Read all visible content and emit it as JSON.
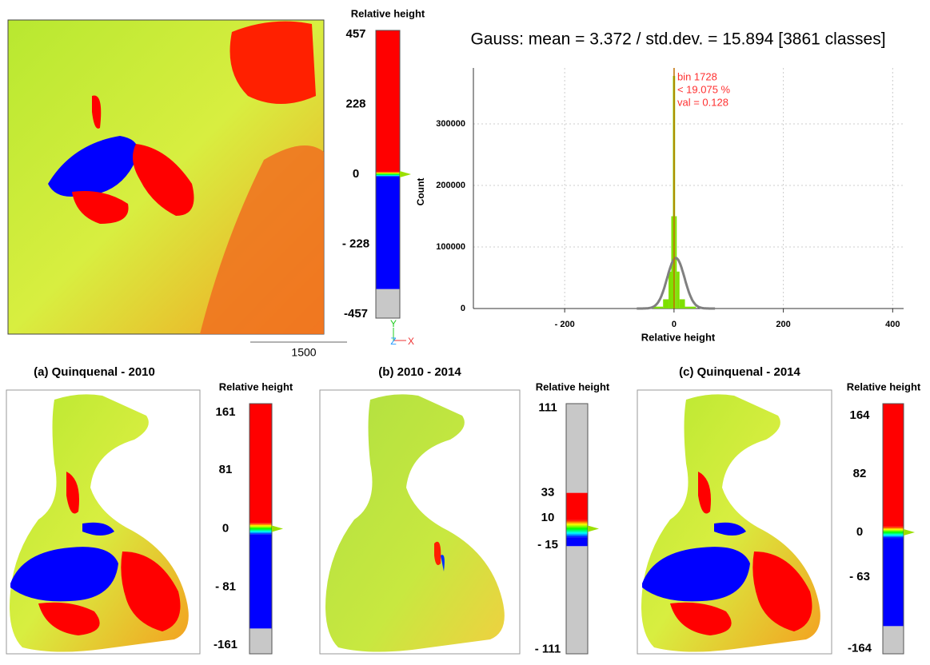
{
  "chart_data": {
    "type": "histogram",
    "title": "Gauss: mean = 3.372 / std.dev. = 15.894 [3861 classes]",
    "x_label": "Relative height",
    "y_label": "Count",
    "bins": [
      -40,
      -20,
      -10,
      -5,
      -2,
      2,
      5,
      10,
      20,
      40
    ],
    "counts": [
      3000,
      15000,
      60000,
      150000,
      378000,
      150000,
      60000,
      15000,
      3000
    ],
    "color": "#7ee000",
    "gauss": {
      "mean": 3.372,
      "std": 15.894,
      "peak": 82000,
      "color": "#808080"
    },
    "marker": {
      "value": 0.128,
      "color": "#c07000",
      "labels": [
        "bin 1728",
        "< 19.075 %",
        "val = 0.128"
      ],
      "label_color": "#ff3030"
    },
    "xlim": [
      -367,
      420
    ],
    "ylim": [
      0,
      391000
    ],
    "xticks": [
      {
        "value": -200,
        "label": "- 200"
      },
      0,
      200,
      400
    ],
    "yticks": [
      0,
      100000,
      200000,
      300000
    ],
    "grid": true
  },
  "top_map": {
    "scale_bar": "1500",
    "axes": [
      "Y",
      "Z",
      "X"
    ]
  },
  "panels": [
    {
      "title": "(a) Quinquenal - 2010"
    },
    {
      "title": "(b) 2010 - 2014"
    },
    {
      "title": "(c) Quinquenal - 2014"
    }
  ],
  "colorbars": [
    {
      "title": "Relative height",
      "lim": [
        -470,
        470
      ],
      "ticks": [
        457,
        228,
        0,
        {
          "value": -228,
          "label": "- 228"
        },
        -457
      ],
      "bands": [
        {
          "from": -470,
          "to": -375,
          "color": "#c8c8c8"
        },
        {
          "from": -375,
          "to": -8,
          "color": "#0000ff"
        },
        {
          "from": -8,
          "to": 8,
          "colors": [
            "#0000ff",
            "#00ffff",
            "#00ff00",
            "#ffff00",
            "#ff0000"
          ]
        },
        {
          "from": 8,
          "to": 470,
          "color": "#ff0000"
        }
      ]
    },
    {
      "title": "Relative height",
      "lim": [
        -173,
        173
      ],
      "ticks": [
        161,
        81,
        0,
        {
          "value": -81,
          "label": "- 81"
        },
        -161
      ],
      "bands": [
        {
          "from": -173,
          "to": -138,
          "color": "#c8c8c8"
        },
        {
          "from": -138,
          "to": -8,
          "color": "#0000ff"
        },
        {
          "from": -8,
          "to": 8,
          "colors": [
            "#0000ff",
            "#00ffff",
            "#00ff00",
            "#ffff00",
            "#ff0000"
          ]
        },
        {
          "from": 8,
          "to": 173,
          "color": "#ff0000"
        }
      ]
    },
    {
      "title": "Relative height",
      "lim": [
        -115,
        115
      ],
      "ticks": [
        111,
        33,
        10,
        {
          "value": -15,
          "label": "- 15"
        },
        {
          "value": -111,
          "label": "- 111"
        }
      ],
      "bands": [
        {
          "from": -115,
          "to": -16,
          "color": "#c8c8c8"
        },
        {
          "from": -16,
          "to": -8,
          "color": "#0000ff"
        },
        {
          "from": -8,
          "to": 8,
          "colors": [
            "#0000ff",
            "#00ffff",
            "#00ff00",
            "#ffff00",
            "#ff0000"
          ]
        },
        {
          "from": 8,
          "to": 33,
          "color": "#ff0000"
        },
        {
          "from": 33,
          "to": 115,
          "color": "#c8c8c8"
        }
      ]
    },
    {
      "title": "Relative height",
      "lim": [
        -171,
        181
      ],
      "ticks": [
        164,
        82,
        0,
        {
          "value": -63,
          "label": "- 63"
        },
        -164
      ],
      "bands": [
        {
          "from": -171,
          "to": -132,
          "color": "#c8c8c8"
        },
        {
          "from": -132,
          "to": -8,
          "color": "#0000ff"
        },
        {
          "from": -8,
          "to": 8,
          "colors": [
            "#0000ff",
            "#00ffff",
            "#00ff00",
            "#ffff00",
            "#ff0000"
          ]
        },
        {
          "from": 8,
          "to": 181,
          "color": "#ff0000"
        }
      ]
    }
  ]
}
